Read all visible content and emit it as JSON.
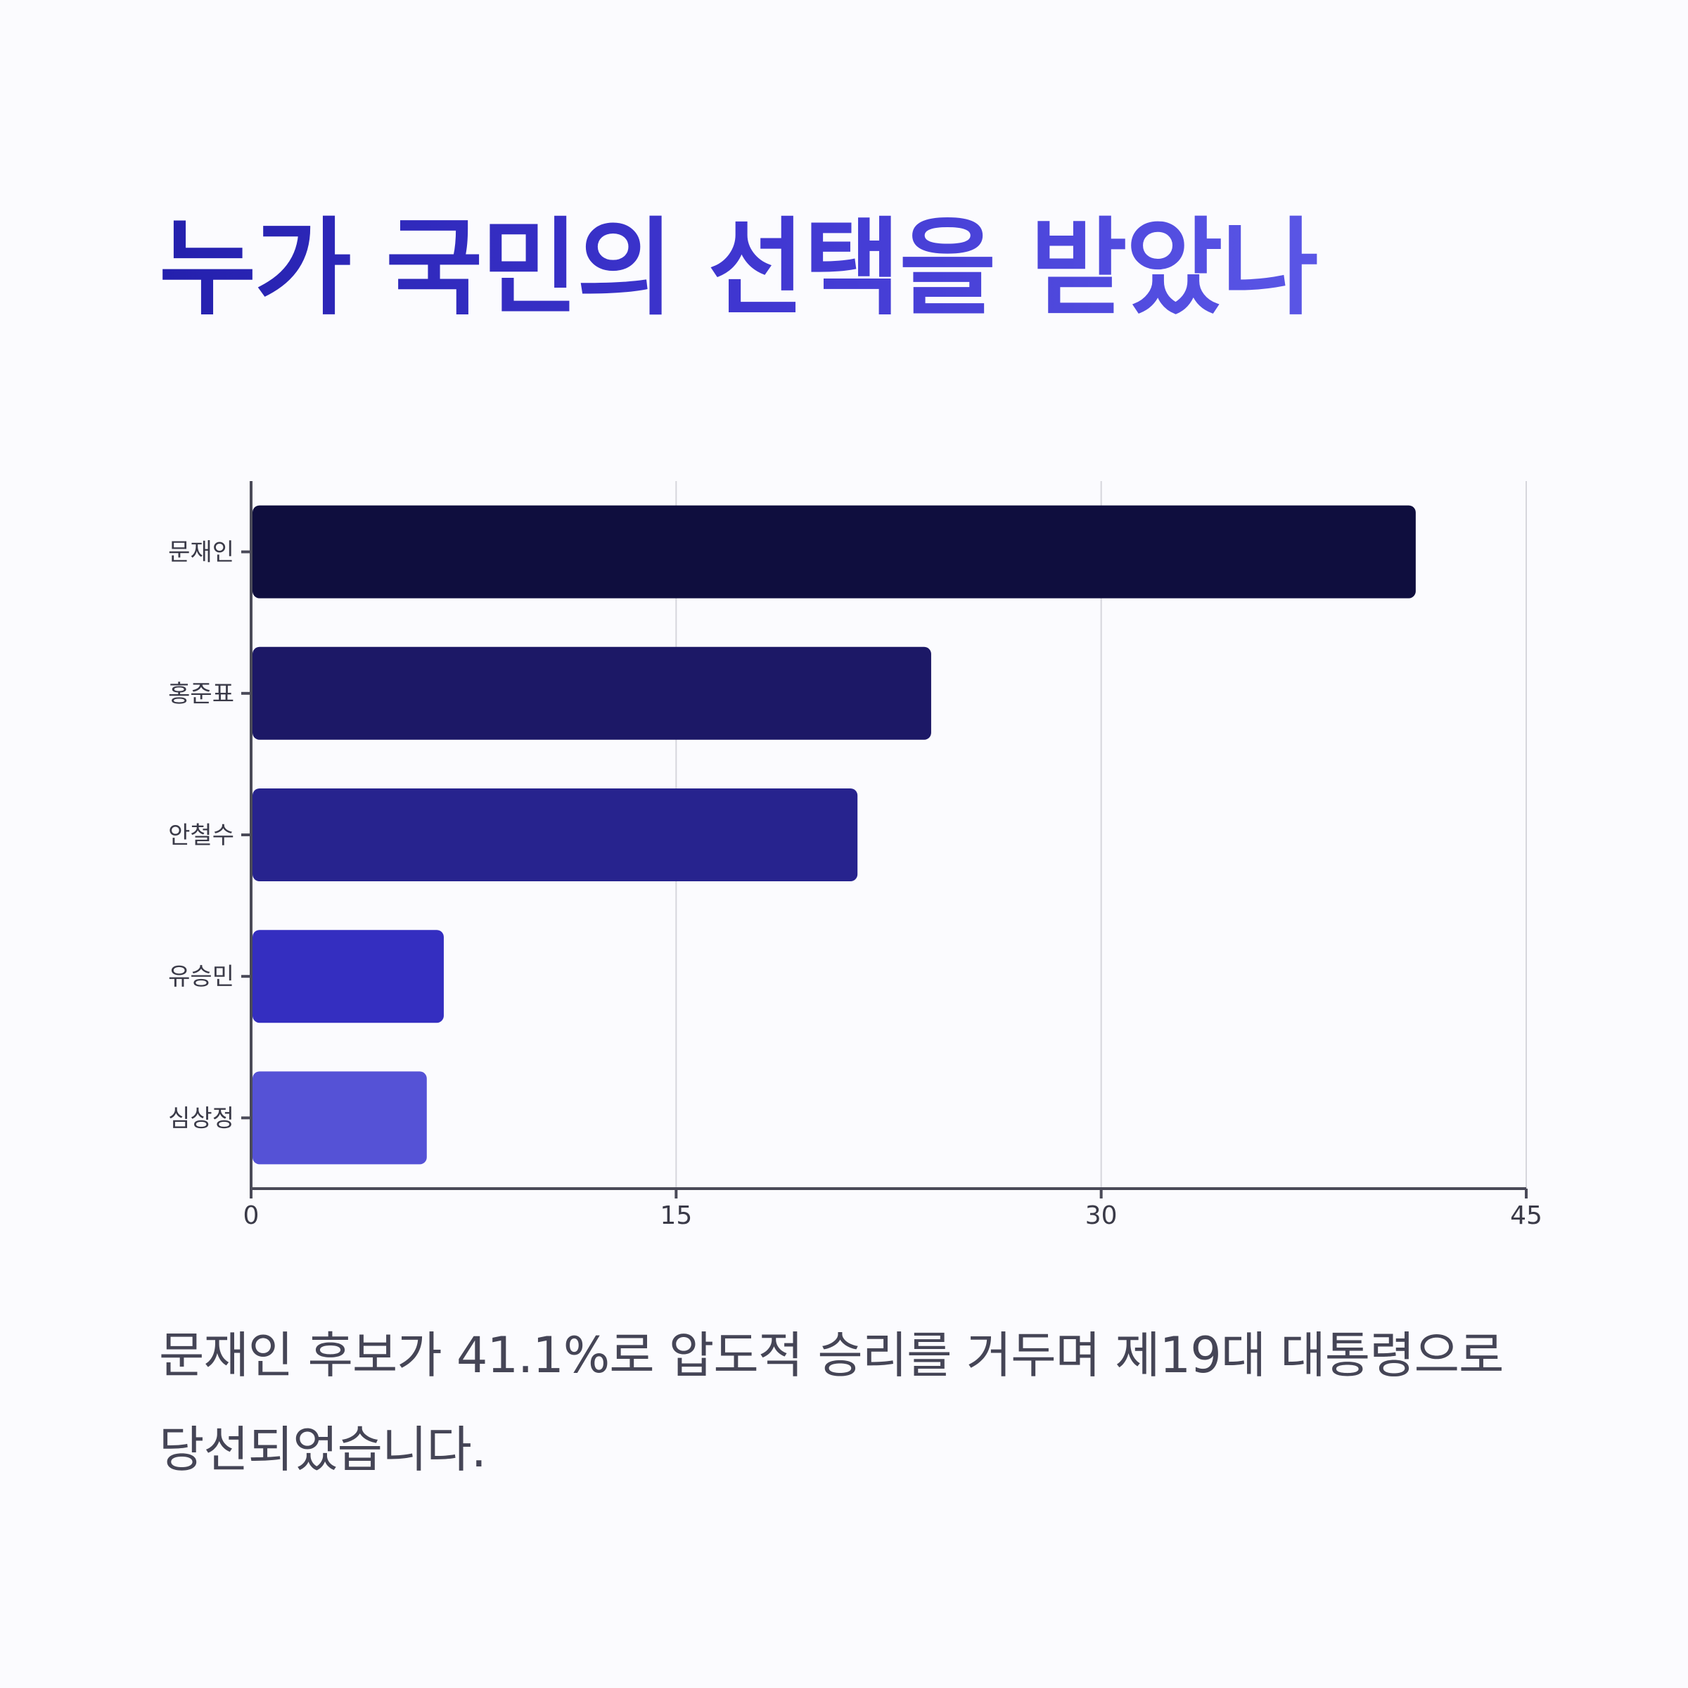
{
  "title": "누가 국민의 선택을 받았나",
  "caption": "문재인 후보가 41.1%로 압도적 승리를 거두며 제19대 대통령으로 당선되었습니다.",
  "chart_data": {
    "type": "bar",
    "orientation": "horizontal",
    "categories": [
      "문재인",
      "홍준표",
      "안철수",
      "유승민",
      "심상정"
    ],
    "values": [
      41.1,
      24.0,
      21.4,
      6.8,
      6.2
    ],
    "colors": [
      "#0f0e3e",
      "#1c1866",
      "#27238e",
      "#342ec0",
      "#5552d6"
    ],
    "xlim": [
      0,
      45
    ],
    "xticks": [
      0,
      15,
      30,
      45
    ],
    "grid": "vertical",
    "title": "",
    "xlabel": "",
    "ylabel": ""
  }
}
